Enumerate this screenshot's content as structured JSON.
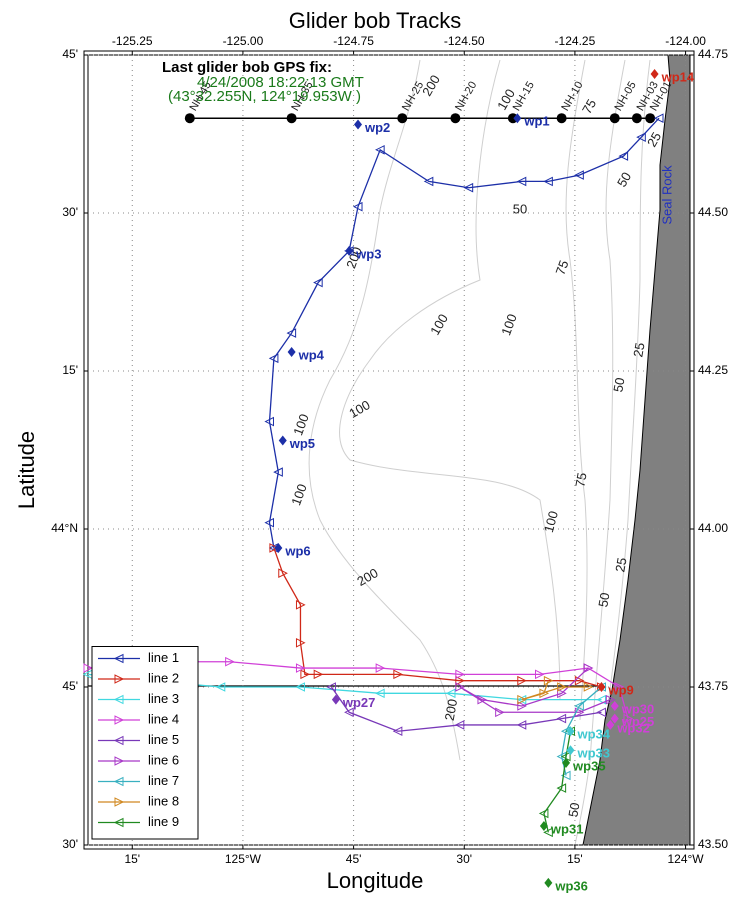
{
  "chart_data": {
    "type": "track-map",
    "title": "Glider bob Tracks",
    "xlabel": "Longitude",
    "ylabel": "Latitude",
    "xlim": [
      -125.35,
      -123.99
    ],
    "ylim": [
      43.5,
      44.75
    ],
    "grid": true,
    "legend": "lower left",
    "xticks": [
      {
        "value": -125.25,
        "label": "-125.25"
      },
      {
        "value": -125.0,
        "label": "-125.00"
      },
      {
        "value": -124.75,
        "label": "-124.75"
      },
      {
        "value": -124.5,
        "label": "-124.50"
      },
      {
        "value": -124.25,
        "label": "-124.25"
      },
      {
        "value": -124.0,
        "label": "-124.00"
      }
    ],
    "xticks_bottom": [
      {
        "value": -125.25,
        "label": "15'"
      },
      {
        "value": -125.0,
        "label": "125°W"
      },
      {
        "value": -124.75,
        "label": "45'"
      },
      {
        "value": -124.5,
        "label": "30'"
      },
      {
        "value": -124.25,
        "label": "15'"
      },
      {
        "value": -124.0,
        "label": "124°W"
      }
    ],
    "yticks": [
      {
        "value": 44.75,
        "label": "44.75"
      },
      {
        "value": 44.5,
        "label": "44.50"
      },
      {
        "value": 44.25,
        "label": "44.25"
      },
      {
        "value": 44.0,
        "label": "44.00"
      },
      {
        "value": 43.75,
        "label": "43.75"
      },
      {
        "value": 43.5,
        "label": "43.50"
      }
    ],
    "yticks_left": [
      {
        "value": 44.75,
        "label": "45'"
      },
      {
        "value": 44.5,
        "label": "30'"
      },
      {
        "value": 44.25,
        "label": "15'"
      },
      {
        "value": 44.0,
        "label": "44°N"
      },
      {
        "value": 43.75,
        "label": "45'"
      },
      {
        "value": 43.5,
        "label": "30'"
      }
    ],
    "annotations": [
      {
        "text": "Last glider bob GPS fix:",
        "color": "#000000"
      },
      {
        "text": "4/24/2008 18:22:13 GMT",
        "color": "#1a7a1a"
      },
      {
        "text": "(43°32.255N, 124°19.953W )",
        "color": "#1a7a1a"
      }
    ],
    "place_label": "Seal Rock",
    "place_color": "#2030c0",
    "contour_labels": [
      "200",
      "100",
      "75",
      "50",
      "50",
      "25",
      "75",
      "100",
      "100",
      "200",
      "100",
      "100",
      "100",
      "50",
      "25",
      "75",
      "100",
      "200",
      "25",
      "50",
      "200",
      "50"
    ],
    "stations": [
      {
        "label": "NH-45",
        "x": -125.12,
        "y": 44.65
      },
      {
        "label": "NH-35",
        "x": -124.89,
        "y": 44.65
      },
      {
        "label": "NH-25",
        "x": -124.64,
        "y": 44.65
      },
      {
        "label": "NH-20",
        "x": -124.52,
        "y": 44.65
      },
      {
        "label": "NH-15",
        "x": -124.39,
        "y": 44.65
      },
      {
        "label": "NH-10",
        "x": -124.28,
        "y": 44.65
      },
      {
        "label": "NH-05",
        "x": -124.16,
        "y": 44.65
      },
      {
        "label": "NH-03",
        "x": -124.11,
        "y": 44.65
      },
      {
        "label": "NH-01",
        "x": -124.08,
        "y": 44.65
      }
    ],
    "series": [
      {
        "name": "line 1",
        "color": "#1c2fa8",
        "x": [
          -124.06,
          -124.1,
          -124.14,
          -124.24,
          -124.31,
          -124.37,
          -124.49,
          -124.58,
          -124.69,
          -124.74,
          -124.76,
          -124.83,
          -124.89,
          -124.93,
          -124.94,
          -124.92,
          -124.94,
          -124.93
        ],
        "y": [
          44.65,
          44.62,
          44.59,
          44.56,
          44.55,
          44.55,
          44.54,
          44.55,
          44.6,
          44.51,
          44.44,
          44.39,
          44.31,
          44.27,
          44.17,
          44.09,
          44.01,
          43.97
        ]
      },
      {
        "name": "line 2",
        "color": "#d02818",
        "x": [
          -124.93,
          -124.91,
          -124.87,
          -124.87,
          -124.86,
          -124.83,
          -124.65,
          -124.51,
          -124.37,
          -124.24,
          -124.19
        ],
        "y": [
          43.97,
          43.93,
          43.88,
          43.82,
          43.77,
          43.77,
          43.77,
          43.76,
          43.76,
          43.76,
          43.75
        ]
      },
      {
        "name": "line 3",
        "color": "#40d8e0",
        "x": [
          -124.19,
          -124.37,
          -124.53,
          -124.69,
          -124.87,
          -125.05,
          -125.21,
          -125.35
        ],
        "y": [
          43.73,
          43.73,
          43.74,
          43.74,
          43.75,
          43.75,
          43.76,
          43.77
        ]
      },
      {
        "name": "line 4",
        "color": "#d040d8",
        "x": [
          -125.35,
          -125.21,
          -125.03,
          -124.87,
          -124.69,
          -124.51,
          -124.33,
          -124.22,
          -124.15,
          -124.13
        ],
        "y": [
          43.78,
          43.79,
          43.79,
          43.78,
          43.78,
          43.77,
          43.77,
          43.78,
          43.75,
          43.7
        ]
      },
      {
        "name": "line 5",
        "color": "#7838b8",
        "x": [
          -124.8,
          -124.76,
          -124.65,
          -124.51,
          -124.37,
          -124.28,
          -124.19
        ],
        "y": [
          43.75,
          43.71,
          43.68,
          43.69,
          43.69,
          43.7,
          43.71
        ]
      },
      {
        "name": "line 6",
        "color": "#a838c8",
        "x": [
          -124.22,
          -124.28,
          -124.37,
          -124.46,
          -124.51,
          -124.42,
          -124.24,
          -124.17
        ],
        "y": [
          43.78,
          43.74,
          43.72,
          43.73,
          43.75,
          43.71,
          43.71,
          43.73
        ]
      },
      {
        "name": "line 7",
        "color": "#38b0c0",
        "x": [
          -124.19,
          -124.24,
          -124.27,
          -124.28,
          -124.27
        ],
        "y": [
          43.75,
          43.72,
          43.68,
          43.64,
          43.61
        ]
      },
      {
        "name": "line 8",
        "color": "#d08820",
        "x": [
          -124.31,
          -124.32,
          -124.37,
          -124.28,
          -124.22
        ],
        "y": [
          43.76,
          43.74,
          43.73,
          43.75,
          43.75
        ]
      },
      {
        "name": "line 9",
        "color": "#208a20",
        "x": [
          -124.26,
          -124.27,
          -124.28,
          -124.32,
          -124.31
        ],
        "y": [
          43.68,
          43.64,
          43.59,
          43.55,
          43.52
        ]
      }
    ],
    "waypoints": [
      {
        "label": "wp1",
        "color": "#1c2fa8",
        "x": -124.38,
        "y": 44.65
      },
      {
        "label": "wp2",
        "color": "#1c2fa8",
        "x": -124.74,
        "y": 44.64
      },
      {
        "label": "wp3",
        "color": "#1c2fa8",
        "x": -124.76,
        "y": 44.44
      },
      {
        "label": "wp4",
        "color": "#1c2fa8",
        "x": -124.89,
        "y": 44.28
      },
      {
        "label": "wp5",
        "color": "#1c2fa8",
        "x": -124.91,
        "y": 44.14
      },
      {
        "label": "wp6",
        "color": "#1c2fa8",
        "x": -124.92,
        "y": 43.97
      },
      {
        "label": "wp14",
        "color": "#d02818",
        "x": -124.07,
        "y": 44.72
      },
      {
        "label": "wp27",
        "color": "#7838b8",
        "x": -124.79,
        "y": 43.73
      },
      {
        "label": "wp9",
        "color": "#d02818",
        "x": -124.19,
        "y": 43.75
      },
      {
        "label": "wp30",
        "color": "#d040d8",
        "x": -124.16,
        "y": 43.72
      },
      {
        "label": "wp25",
        "color": "#d040d8",
        "x": -124.16,
        "y": 43.7
      },
      {
        "label": "wp32",
        "color": "#d040d8",
        "x": -124.17,
        "y": 43.69
      },
      {
        "label": "wp34",
        "color": "#40c8d0",
        "x": -124.26,
        "y": 43.68
      },
      {
        "label": "wp33",
        "color": "#40c8d0",
        "x": -124.26,
        "y": 43.65
      },
      {
        "label": "wp35",
        "color": "#208a20",
        "x": -124.27,
        "y": 43.63
      },
      {
        "label": "wp31",
        "color": "#208a20",
        "x": -124.32,
        "y": 43.53
      },
      {
        "label": "wp36",
        "color": "#208a20",
        "x": -124.31,
        "y": 43.44
      }
    ]
  }
}
